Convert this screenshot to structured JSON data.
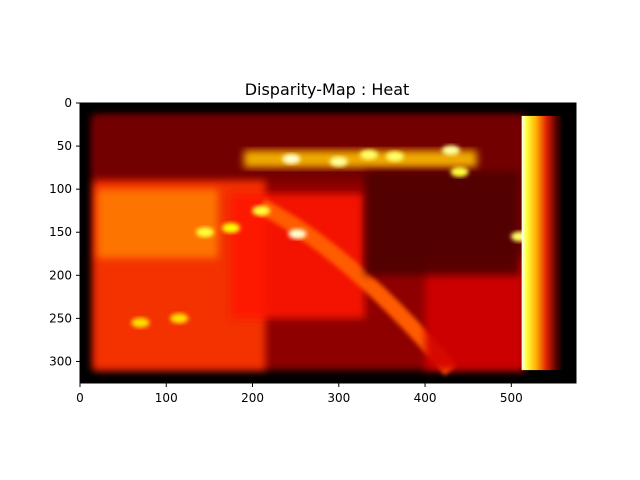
{
  "chart_data": {
    "type": "heatmap",
    "title": "Disparity-Map : Heat",
    "colormap": "hot",
    "xlim": [
      0,
      575
    ],
    "ylim": [
      325,
      0
    ],
    "x_ticks": [
      0,
      100,
      200,
      300,
      400,
      500
    ],
    "y_ticks": [
      0,
      50,
      100,
      150,
      200,
      250,
      300
    ],
    "image_extent": {
      "width": 575,
      "height": 325
    },
    "valid_region": {
      "x": [
        15,
        560
      ],
      "y": [
        15,
        310
      ]
    },
    "xlabel": "",
    "ylabel": "",
    "grid": false,
    "regions": [
      {
        "name": "background-scene",
        "x": [
          15,
          515
        ],
        "y": [
          15,
          310
        ],
        "level": 0.22
      },
      {
        "name": "upper-band",
        "x": [
          15,
          515
        ],
        "y": [
          15,
          90
        ],
        "level": 0.15
      },
      {
        "name": "upper-bright-strip",
        "x": [
          190,
          460
        ],
        "y": [
          55,
          75
        ],
        "level": 0.65
      },
      {
        "name": "left-object",
        "x": [
          15,
          215
        ],
        "y": [
          90,
          310
        ],
        "level": 0.45
      },
      {
        "name": "left-object-top",
        "x": [
          20,
          160
        ],
        "y": [
          100,
          180
        ],
        "level": 0.55
      },
      {
        "name": "central-object",
        "x": [
          175,
          330
        ],
        "y": [
          105,
          250
        ],
        "level": 0.4
      },
      {
        "name": "diagonal-rod",
        "x": [
          210,
          430
        ],
        "y": [
          120,
          310
        ],
        "level": 0.45
      },
      {
        "name": "right-side",
        "x": [
          400,
          515
        ],
        "y": [
          180,
          310
        ],
        "level": 0.3
      },
      {
        "name": "dark-right-block",
        "x": [
          330,
          510
        ],
        "y": [
          80,
          200
        ],
        "level": 0.1
      },
      {
        "name": "right-gradient-band",
        "x": [
          512,
          560
        ],
        "y": [
          15,
          310
        ],
        "level_start": 1.0,
        "level_end": 0.0
      }
    ],
    "hot_spots": [
      {
        "x": 245,
        "y": 65,
        "level": 0.95
      },
      {
        "x": 300,
        "y": 68,
        "level": 0.9
      },
      {
        "x": 335,
        "y": 60,
        "level": 0.85
      },
      {
        "x": 430,
        "y": 55,
        "level": 0.9
      },
      {
        "x": 210,
        "y": 125,
        "level": 0.8
      },
      {
        "x": 252,
        "y": 152,
        "level": 0.95
      },
      {
        "x": 145,
        "y": 150,
        "level": 0.8
      },
      {
        "x": 175,
        "y": 145,
        "level": 0.75
      },
      {
        "x": 440,
        "y": 80,
        "level": 0.8
      },
      {
        "x": 365,
        "y": 62,
        "level": 0.85
      },
      {
        "x": 70,
        "y": 255,
        "level": 0.7
      },
      {
        "x": 115,
        "y": 250,
        "level": 0.7
      },
      {
        "x": 510,
        "y": 155,
        "level": 0.85
      }
    ]
  }
}
